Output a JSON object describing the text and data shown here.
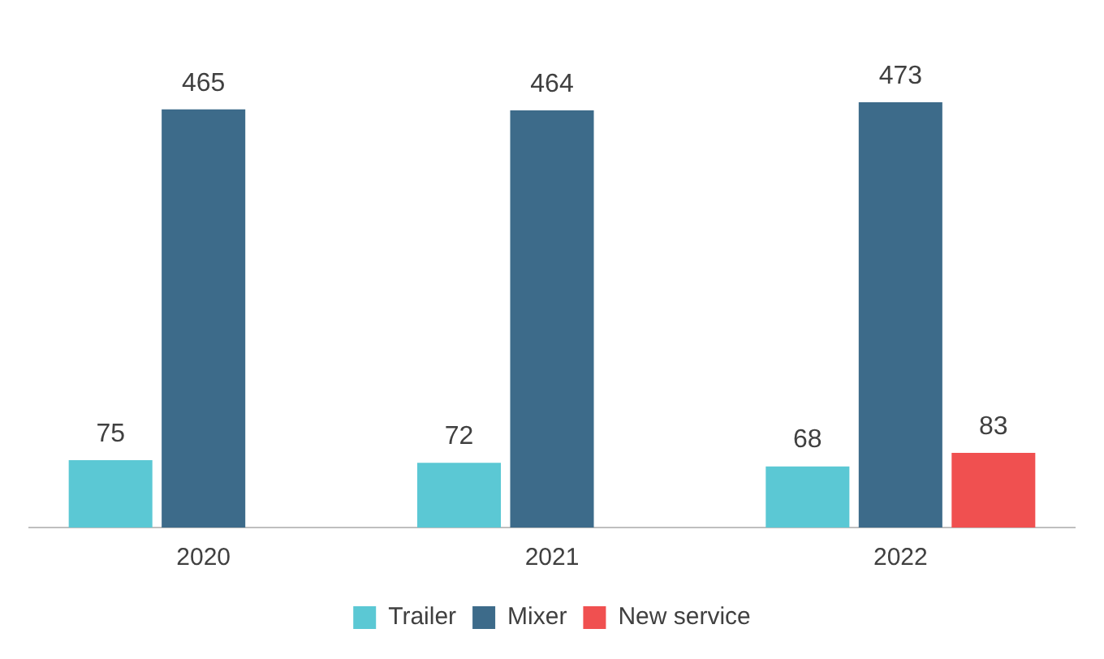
{
  "chart_data": {
    "type": "bar",
    "categories": [
      "2020",
      "2021",
      "2022"
    ],
    "series": [
      {
        "name": "Trailer",
        "color": "#5bc8d4",
        "values": [
          75,
          72,
          68
        ]
      },
      {
        "name": "Mixer",
        "color": "#3d6b8a",
        "values": [
          465,
          464,
          473
        ]
      },
      {
        "name": "New service",
        "color": "#f05050",
        "values": [
          null,
          null,
          83
        ]
      }
    ],
    "data_labels": true,
    "legend": "bottom",
    "grid": false
  }
}
